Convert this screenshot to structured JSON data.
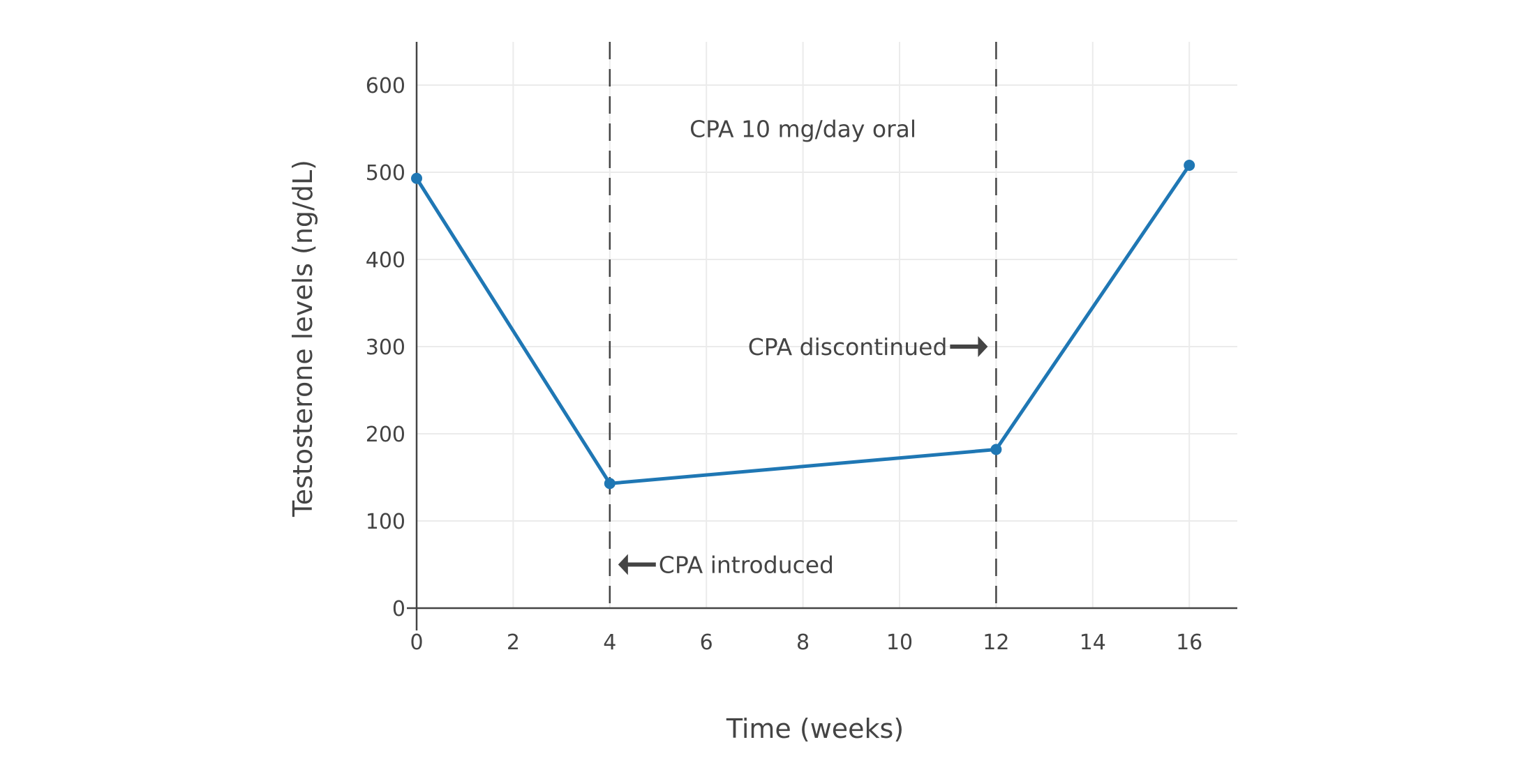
{
  "chart_data": {
    "type": "line",
    "title": "",
    "xlabel": "Time (weeks)",
    "ylabel": "Testosterone levels (ng/dL)",
    "xlim": [
      0,
      17
    ],
    "ylim": [
      0,
      650
    ],
    "xticks": [
      0,
      2,
      4,
      6,
      8,
      10,
      12,
      14,
      16
    ],
    "yticks": [
      0,
      100,
      200,
      300,
      400,
      500,
      600
    ],
    "grid": true,
    "color": "#1f77b4",
    "series": [
      {
        "x": [
          0,
          4,
          12,
          16
        ],
        "y": [
          493,
          143,
          182,
          508
        ]
      }
    ],
    "vlines": [
      4,
      12
    ],
    "annotations": [
      {
        "text": "CPA 10 mg/day oral",
        "x": 8,
        "y": 550,
        "arrow": "none"
      },
      {
        "text": "CPA discontinued",
        "x": 12,
        "y": 300,
        "arrow": "right"
      },
      {
        "text": "CPA introduced",
        "x": 4,
        "y": 50,
        "arrow": "left"
      }
    ]
  }
}
